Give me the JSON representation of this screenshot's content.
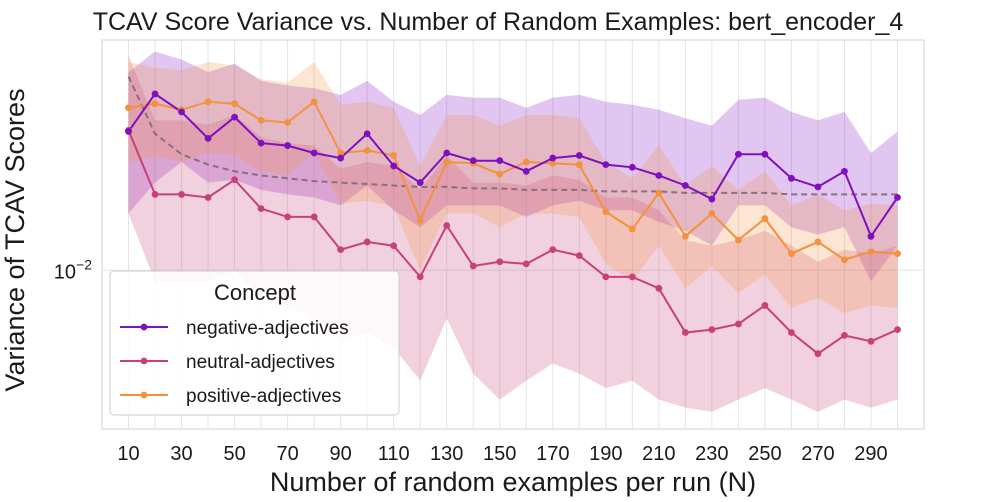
{
  "chart_data": {
    "type": "line",
    "title": "TCAV Score Variance vs. Number of Random Examples: bert_encoder_4",
    "xlabel": "Number of random examples per run (N)",
    "ylabel": "Variance of TCAV Scores",
    "yscale": "log",
    "ylim": [
      0.0048,
      0.029
    ],
    "xlim": [
      0,
      310
    ],
    "x": [
      10,
      20,
      30,
      40,
      50,
      60,
      70,
      80,
      90,
      100,
      110,
      120,
      130,
      140,
      150,
      160,
      170,
      180,
      190,
      200,
      210,
      220,
      230,
      240,
      250,
      260,
      270,
      280,
      290,
      300
    ],
    "x_tick_labels": [
      "10",
      "30",
      "50",
      "70",
      "90",
      "110",
      "130",
      "150",
      "170",
      "190",
      "210",
      "230",
      "250",
      "270",
      "290"
    ],
    "y_tick_labels": [
      {
        "value": 0.01,
        "base": "10",
        "exp": "−2"
      }
    ],
    "legend": {
      "title": "Concept",
      "position": "lower-left"
    },
    "series": [
      {
        "name": "negative-adjectives",
        "color": "#7f0fbf",
        "values": [
          0.019,
          0.0226,
          0.0208,
          0.0184,
          0.0203,
          0.018,
          0.0178,
          0.0172,
          0.0168,
          0.0188,
          0.0162,
          0.015,
          0.0172,
          0.0166,
          0.0166,
          0.0158,
          0.0168,
          0.017,
          0.0163,
          0.0161,
          0.0155,
          0.0148,
          0.0139,
          0.0171,
          0.0171,
          0.0153,
          0.0147,
          0.0158,
          0.0117,
          0.014
        ],
        "lower": [
          0.013,
          0.015,
          0.0165,
          0.015,
          0.0152,
          0.0145,
          0.0142,
          0.014,
          0.0135,
          0.0148,
          0.0132,
          0.0122,
          0.0135,
          0.0135,
          0.0135,
          0.0128,
          0.0135,
          0.0138,
          0.0132,
          0.0132,
          0.0125,
          0.012,
          0.0112,
          0.0135,
          0.0135,
          0.0122,
          0.0118,
          0.0122,
          0.0095,
          0.0112
        ],
        "upper": [
          0.025,
          0.0275,
          0.0265,
          0.025,
          0.026,
          0.024,
          0.0235,
          0.0232,
          0.0225,
          0.024,
          0.0218,
          0.0205,
          0.0225,
          0.0222,
          0.0222,
          0.0212,
          0.0222,
          0.0225,
          0.0218,
          0.0215,
          0.021,
          0.0202,
          0.0195,
          0.022,
          0.0222,
          0.0208,
          0.02,
          0.0208,
          0.0172,
          0.019
        ]
      },
      {
        "name": "neutral-adjectives",
        "color": "#c8407a",
        "values": [
          0.0191,
          0.0142,
          0.0142,
          0.014,
          0.0152,
          0.0133,
          0.0128,
          0.0128,
          0.011,
          0.0114,
          0.0112,
          0.0097,
          0.0123,
          0.0102,
          0.0104,
          0.0103,
          0.011,
          0.0107,
          0.0097,
          0.0097,
          0.0092,
          0.0075,
          0.0076,
          0.0078,
          0.0085,
          0.0075,
          0.0068,
          0.0074,
          0.0072,
          0.0076
        ],
        "lower": [
          0.013,
          0.0095,
          0.0095,
          0.0095,
          0.01,
          0.0088,
          0.0085,
          0.008,
          0.0072,
          0.0075,
          0.007,
          0.006,
          0.008,
          0.0062,
          0.0055,
          0.006,
          0.0065,
          0.0062,
          0.0058,
          0.006,
          0.0055,
          0.0053,
          0.0052,
          0.0055,
          0.0058,
          0.0055,
          0.0052,
          0.0055,
          0.0053,
          0.0055
        ],
        "upper": [
          0.027,
          0.02,
          0.02,
          0.0196,
          0.0205,
          0.0185,
          0.018,
          0.0178,
          0.016,
          0.0165,
          0.0162,
          0.0145,
          0.017,
          0.015,
          0.015,
          0.0148,
          0.0155,
          0.0152,
          0.014,
          0.014,
          0.0132,
          0.0115,
          0.0112,
          0.0115,
          0.012,
          0.0112,
          0.0104,
          0.011,
          0.0108,
          0.0112
        ]
      },
      {
        "name": "positive-adjectives",
        "color": "#f4913f",
        "values": [
          0.0212,
          0.0216,
          0.021,
          0.0218,
          0.0216,
          0.02,
          0.0198,
          0.0218,
          0.0172,
          0.0174,
          0.017,
          0.0126,
          0.0165,
          0.0164,
          0.0156,
          0.0165,
          0.0164,
          0.0163,
          0.0131,
          0.0121,
          0.0143,
          0.0117,
          0.013,
          0.0115,
          0.0127,
          0.0108,
          0.0114,
          0.0105,
          0.0109,
          0.0108
        ],
        "lower": [
          0.0165,
          0.017,
          0.0165,
          0.0172,
          0.017,
          0.0158,
          0.0155,
          0.0172,
          0.0136,
          0.0138,
          0.0134,
          0.01,
          0.013,
          0.013,
          0.0122,
          0.013,
          0.013,
          0.0128,
          0.0103,
          0.0095,
          0.0112,
          0.0092,
          0.0102,
          0.009,
          0.0098,
          0.0084,
          0.0088,
          0.0082,
          0.0085,
          0.0084
        ],
        "upper": [
          0.0262,
          0.0255,
          0.0252,
          0.0262,
          0.0258,
          0.0242,
          0.0238,
          0.0262,
          0.0215,
          0.0218,
          0.0212,
          0.0162,
          0.0205,
          0.0205,
          0.0195,
          0.0205,
          0.0205,
          0.0202,
          0.0165,
          0.0153,
          0.0178,
          0.0148,
          0.0162,
          0.0145,
          0.0158,
          0.0135,
          0.0142,
          0.0132,
          0.0136,
          0.0135
        ]
      }
    ],
    "trend_line": {
      "color": "#8a6f7f",
      "style": "dashed",
      "values": [
        0.0245,
        0.0188,
        0.0171,
        0.0163,
        0.0158,
        0.0155,
        0.0153,
        0.0151,
        0.015,
        0.0149,
        0.0148,
        0.0147,
        0.0147,
        0.0146,
        0.0146,
        0.0145,
        0.0145,
        0.0145,
        0.0144,
        0.0144,
        0.0144,
        0.0143,
        0.0143,
        0.0143,
        0.0143,
        0.0142,
        0.0142,
        0.0142,
        0.0142,
        0.0142
      ]
    }
  }
}
